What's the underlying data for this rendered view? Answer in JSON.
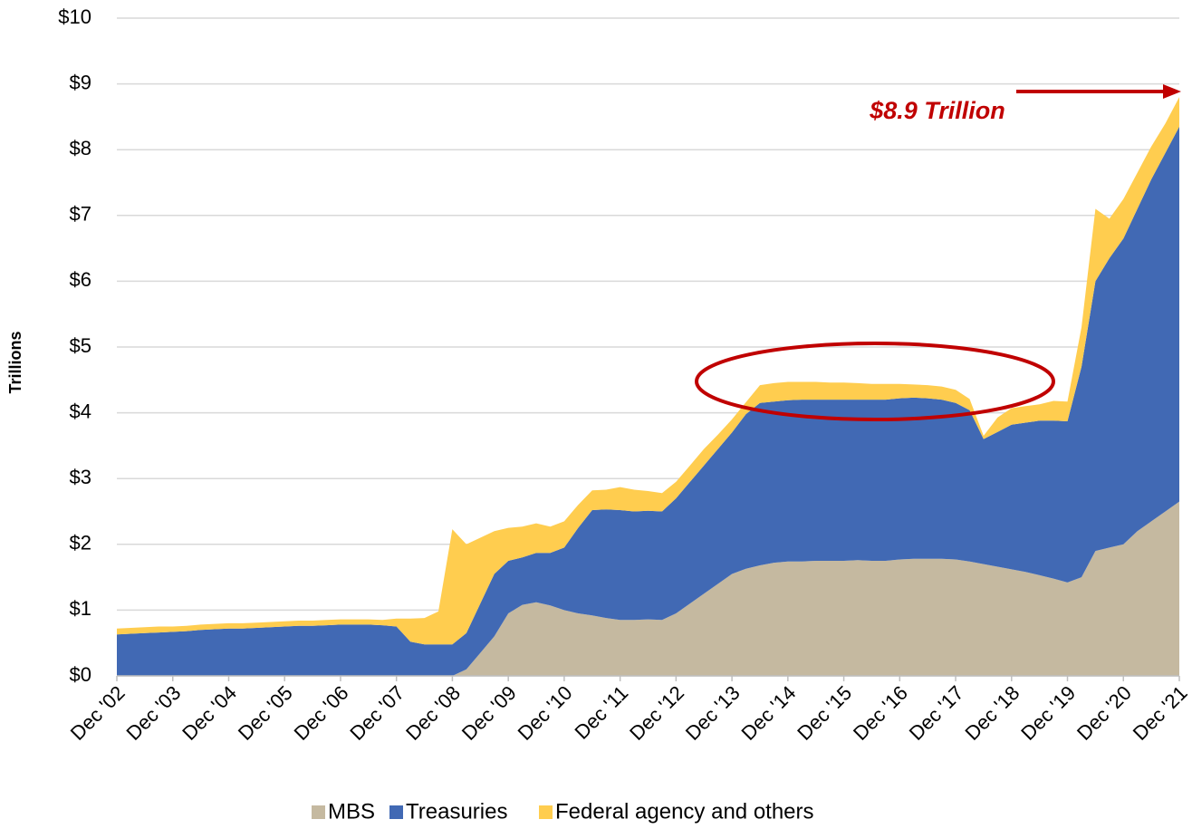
{
  "chart_data": {
    "type": "stacked_area",
    "y_label": "Trillions",
    "annotation": "$8.9 Trillion",
    "categories": [
      "Dec '02",
      null,
      null,
      null,
      "Dec '03",
      null,
      null,
      null,
      "Dec '04",
      null,
      null,
      null,
      "Dec '05",
      null,
      null,
      null,
      "Dec '06",
      null,
      null,
      null,
      "Dec '07",
      null,
      null,
      null,
      "Dec '08",
      null,
      null,
      null,
      "Dec '09",
      null,
      null,
      null,
      "Dec '10",
      null,
      null,
      null,
      "Dec '11",
      null,
      null,
      null,
      "Dec '12",
      null,
      null,
      null,
      "Dec '13",
      null,
      null,
      null,
      "Dec '14",
      null,
      null,
      null,
      "Dec '15",
      null,
      null,
      null,
      "Dec '16",
      null,
      null,
      null,
      "Dec '17",
      null,
      null,
      null,
      "Dec '18",
      null,
      null,
      null,
      "Dec '19",
      null,
      null,
      null,
      "Dec '20",
      null,
      null,
      null,
      "Dec '21"
    ],
    "series": [
      {
        "name": "MBS",
        "color": "#c5b9a0",
        "values": [
          0,
          0,
          0,
          0,
          0,
          0,
          0,
          0,
          0,
          0,
          0,
          0,
          0,
          0,
          0,
          0,
          0,
          0,
          0,
          0,
          0,
          0,
          0,
          0,
          0,
          0.1,
          0.35,
          0.6,
          0.95,
          1.08,
          1.12,
          1.07,
          1.0,
          0.95,
          0.92,
          0.88,
          0.85,
          0.85,
          0.86,
          0.85,
          0.95,
          1.1,
          1.25,
          1.4,
          1.55,
          1.63,
          1.68,
          1.72,
          1.74,
          1.74,
          1.75,
          1.75,
          1.75,
          1.76,
          1.75,
          1.75,
          1.77,
          1.78,
          1.78,
          1.78,
          1.77,
          1.74,
          1.7,
          1.66,
          1.62,
          1.58,
          1.53,
          1.48,
          1.42,
          1.5,
          1.9,
          1.95,
          2.0,
          2.2,
          2.35,
          2.5,
          2.65
        ]
      },
      {
        "name": "Treasuries",
        "color": "#4169b4",
        "values": [
          0.63,
          0.64,
          0.65,
          0.66,
          0.67,
          0.68,
          0.7,
          0.71,
          0.72,
          0.72,
          0.73,
          0.74,
          0.75,
          0.76,
          0.76,
          0.77,
          0.78,
          0.78,
          0.78,
          0.77,
          0.75,
          0.52,
          0.48,
          0.48,
          0.48,
          0.55,
          0.75,
          0.95,
          0.8,
          0.72,
          0.75,
          0.8,
          0.95,
          1.3,
          1.6,
          1.65,
          1.67,
          1.65,
          1.65,
          1.65,
          1.75,
          1.85,
          1.95,
          2.05,
          2.15,
          2.35,
          2.47,
          2.45,
          2.45,
          2.46,
          2.45,
          2.45,
          2.45,
          2.44,
          2.45,
          2.45,
          2.45,
          2.45,
          2.44,
          2.42,
          2.38,
          2.3,
          1.9,
          2.05,
          2.2,
          2.27,
          2.35,
          2.4,
          2.45,
          3.2,
          4.1,
          4.4,
          4.65,
          4.9,
          5.2,
          5.45,
          5.7
        ]
      },
      {
        "name": "Federal agency and others",
        "color": "#ffcd4f",
        "values": [
          0.09,
          0.09,
          0.09,
          0.09,
          0.08,
          0.08,
          0.08,
          0.08,
          0.08,
          0.08,
          0.08,
          0.08,
          0.08,
          0.08,
          0.08,
          0.08,
          0.08,
          0.08,
          0.08,
          0.08,
          0.12,
          0.35,
          0.4,
          0.5,
          1.75,
          1.35,
          1.0,
          0.65,
          0.5,
          0.47,
          0.45,
          0.4,
          0.4,
          0.35,
          0.3,
          0.3,
          0.35,
          0.33,
          0.3,
          0.28,
          0.25,
          0.25,
          0.25,
          0.22,
          0.2,
          0.18,
          0.27,
          0.28,
          0.28,
          0.27,
          0.27,
          0.26,
          0.26,
          0.25,
          0.24,
          0.24,
          0.22,
          0.2,
          0.2,
          0.2,
          0.2,
          0.17,
          0.05,
          0.22,
          0.25,
          0.25,
          0.25,
          0.3,
          0.3,
          0.6,
          1.1,
          0.6,
          0.6,
          0.55,
          0.5,
          0.45,
          0.45
        ]
      }
    ],
    "ylim": [
      0,
      10
    ],
    "yticks": [
      {
        "value": 0,
        "label": "$0"
      },
      {
        "value": 1,
        "label": "$1"
      },
      {
        "value": 2,
        "label": "$2"
      },
      {
        "value": 3,
        "label": "$3"
      },
      {
        "value": 4,
        "label": "$4"
      },
      {
        "value": 5,
        "label": "$5"
      },
      {
        "value": 6,
        "label": "$6"
      },
      {
        "value": 7,
        "label": "$7"
      },
      {
        "value": 8,
        "label": "$8"
      },
      {
        "value": 9,
        "label": "$9"
      },
      {
        "value": 10,
        "label": "$10"
      }
    ],
    "grid": true,
    "legend": "bottom"
  }
}
